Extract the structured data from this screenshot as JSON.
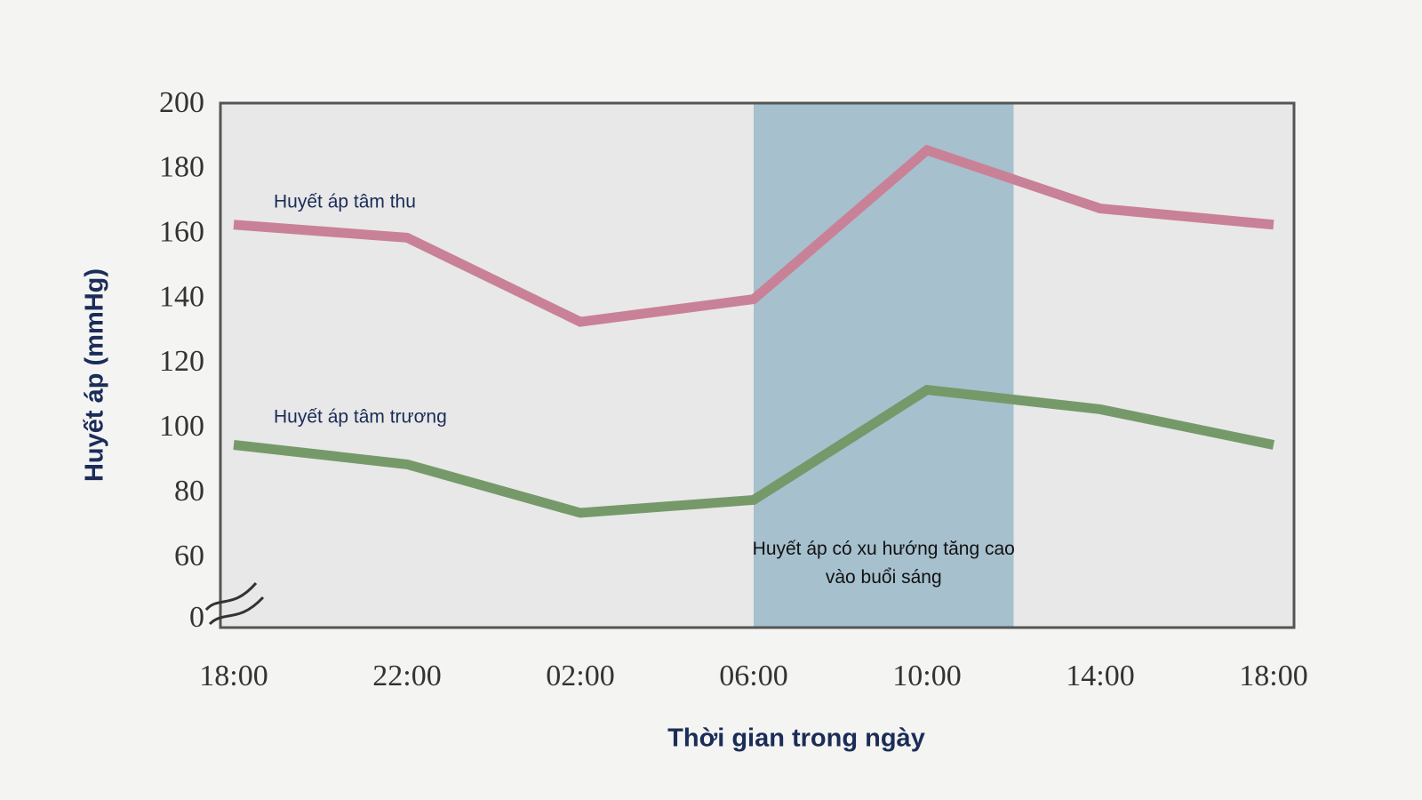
{
  "chart_data": {
    "type": "line",
    "x_label": "Thời gian trong ngày",
    "y_label": "Huyết áp (mmHg)",
    "categories": [
      "18:00",
      "22:00",
      "02:00",
      "06:00",
      "10:00",
      "14:00",
      "18:00"
    ],
    "series": [
      {
        "name": "Huyết áp tâm thu",
        "color": "#c98198",
        "values": [
          163,
          159,
          133,
          140,
          186,
          168,
          163
        ]
      },
      {
        "name": "Huyết áp tâm trương",
        "color": "#76996a",
        "values": [
          95,
          89,
          74,
          78,
          112,
          106,
          95
        ]
      }
    ],
    "ylim": [
      0,
      200
    ],
    "y_break": [
      0,
      60
    ],
    "yticks": [
      0,
      60,
      80,
      100,
      120,
      140,
      160,
      180,
      200
    ],
    "grid": false,
    "highlight": {
      "from": 3,
      "to": 4.5,
      "color": "#a6c0ce",
      "label": "Huyết áp có xu hướng tăng cao vào buổi sáng"
    }
  }
}
